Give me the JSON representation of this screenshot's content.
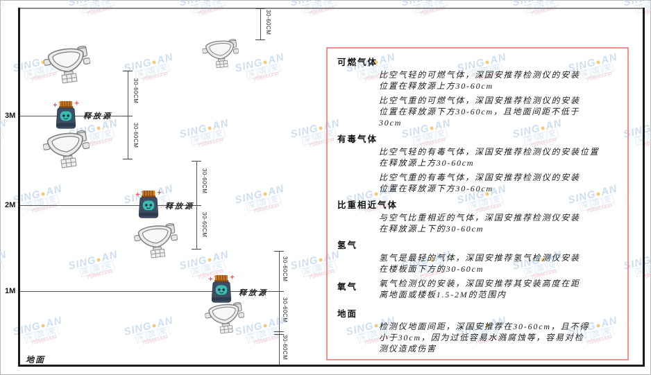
{
  "diagram": {
    "heights": [
      "3M",
      "2M",
      "1M"
    ],
    "dim_label": "30-60CM",
    "source_label": "释放源",
    "ground_label": "地面"
  },
  "panel": {
    "sections": [
      {
        "heading": "可燃气体",
        "inline": false,
        "paragraphs": [
          [
            "比空气轻的可燃气体，深国安推荐检测仪的安装",
            "位置在释放源上方30-60cm"
          ],
          [
            "比空气重的可燃气体，深国安推荐检测仪的安装",
            "位置在释放源下方30-60cm，且地面间距不低于",
            "30cm"
          ]
        ]
      },
      {
        "heading": "有毒气体",
        "inline": false,
        "paragraphs": [
          [
            "比空气轻的有毒气体，深国安推荐检测仪的安装位置",
            "在释放源上方30-60cm"
          ],
          [
            "比空气重的有毒气体，深国安推荐检测仪的安装",
            "位置在释放源下方30-60cm"
          ]
        ]
      },
      {
        "heading": "比重相近气体",
        "inline": false,
        "paragraphs": [
          [
            "与空气比重相近的气体，深国安推荐检测仪安装",
            "在释放源上下的30-60cm"
          ]
        ]
      },
      {
        "heading": "氢气",
        "inline": false,
        "paragraphs": [
          [
            "氢气是最轻的气体，深国安推荐氢气检测仪安装",
            "在楼板面下方的30-60cm"
          ]
        ]
      },
      {
        "heading": "氧气",
        "inline": true,
        "paragraphs": [
          [
            "氧气检测仪的安装，深国安推荐其安装高度在距",
            "离地面或楼板1.5-2M的范围内"
          ]
        ]
      },
      {
        "heading": "地面",
        "inline": false,
        "paragraphs": [
          [
            "检测仪地面间距，深国安推荐在30-60cm，且不得",
            "小于30cm，因为过低容易水溅腐蚀等，容易对检",
            "测仪造成伤害"
          ]
        ]
      }
    ]
  },
  "watermark": {
    "brand_left": "SING",
    "brand_dot": "●",
    "brand_right": "AN",
    "cn": "深国安",
    "code": "代码661434"
  },
  "colors": {
    "panel_border": "#ef8f8f",
    "wall": "#1b1b1b",
    "detector_body": "#ececec",
    "source_body": "#3d4e63",
    "source_cap": "#c8791f",
    "source_face": "#39bdb3",
    "watermark_blue": "#c6d9ef",
    "watermark_red": "#efb6c2"
  }
}
